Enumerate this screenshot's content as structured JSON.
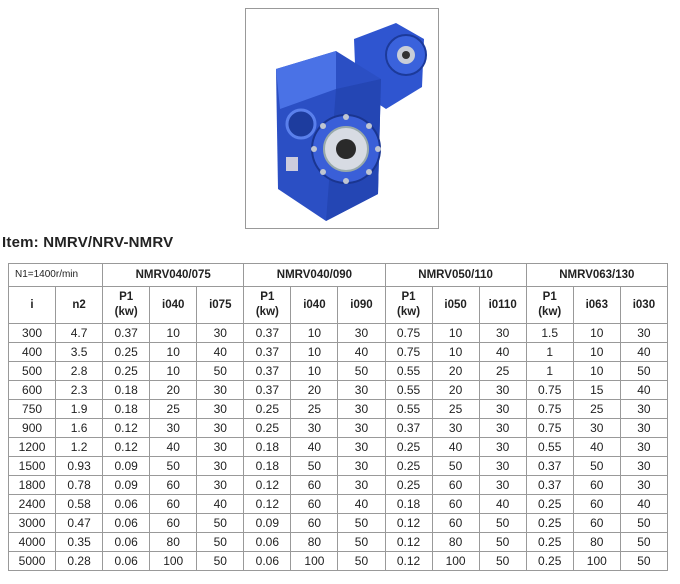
{
  "title": "Item: NMRV/NRV-NMRV",
  "table": {
    "speed_label": "N1=1400r/min",
    "groups": [
      "NMRV040/075",
      "NMRV040/090",
      "NMRV050/110",
      "NMRV063/130"
    ],
    "headers": [
      "i",
      "n2",
      "P1\n(kw)",
      "i040",
      "i075",
      "P1\n(kw)",
      "i040",
      "i090",
      "P1\n(kw)",
      "i050",
      "i0110",
      "P1\n(kw)",
      "i063",
      "i030"
    ],
    "rows": [
      [
        "300",
        "4.7",
        "0.37",
        "10",
        "30",
        "0.37",
        "10",
        "30",
        "0.75",
        "10",
        "30",
        "1.5",
        "10",
        "30"
      ],
      [
        "400",
        "3.5",
        "0.25",
        "10",
        "40",
        "0.37",
        "10",
        "40",
        "0.75",
        "10",
        "40",
        "1",
        "10",
        "40"
      ],
      [
        "500",
        "2.8",
        "0.25",
        "10",
        "50",
        "0.37",
        "10",
        "50",
        "0.55",
        "20",
        "25",
        "1",
        "10",
        "50"
      ],
      [
        "600",
        "2.3",
        "0.18",
        "20",
        "30",
        "0.37",
        "20",
        "30",
        "0.55",
        "20",
        "30",
        "0.75",
        "15",
        "40"
      ],
      [
        "750",
        "1.9",
        "0.18",
        "25",
        "30",
        "0.25",
        "25",
        "30",
        "0.55",
        "25",
        "30",
        "0.75",
        "25",
        "30"
      ],
      [
        "900",
        "1.6",
        "0.12",
        "30",
        "30",
        "0.25",
        "30",
        "30",
        "0.37",
        "30",
        "30",
        "0.75",
        "30",
        "30"
      ],
      [
        "1200",
        "1.2",
        "0.12",
        "40",
        "30",
        "0.18",
        "40",
        "30",
        "0.25",
        "40",
        "30",
        "0.55",
        "40",
        "30"
      ],
      [
        "1500",
        "0.93",
        "0.09",
        "50",
        "30",
        "0.18",
        "50",
        "30",
        "0.25",
        "50",
        "30",
        "0.37",
        "50",
        "30"
      ],
      [
        "1800",
        "0.78",
        "0.09",
        "60",
        "30",
        "0.12",
        "60",
        "30",
        "0.25",
        "60",
        "30",
        "0.37",
        "60",
        "30"
      ],
      [
        "2400",
        "0.58",
        "0.06",
        "60",
        "40",
        "0.12",
        "60",
        "40",
        "0.18",
        "60",
        "40",
        "0.25",
        "60",
        "40"
      ],
      [
        "3000",
        "0.47",
        "0.06",
        "60",
        "50",
        "0.09",
        "60",
        "50",
        "0.12",
        "60",
        "50",
        "0.25",
        "60",
        "50"
      ],
      [
        "4000",
        "0.35",
        "0.06",
        "80",
        "50",
        "0.06",
        "80",
        "50",
        "0.12",
        "80",
        "50",
        "0.25",
        "80",
        "50"
      ],
      [
        "5000",
        "0.28",
        "0.06",
        "100",
        "50",
        "0.06",
        "100",
        "50",
        "0.12",
        "100",
        "50",
        "0.25",
        "100",
        "50"
      ]
    ]
  },
  "colors": {
    "gearbox_blue": "#2a4fc8",
    "border": "#999999"
  }
}
